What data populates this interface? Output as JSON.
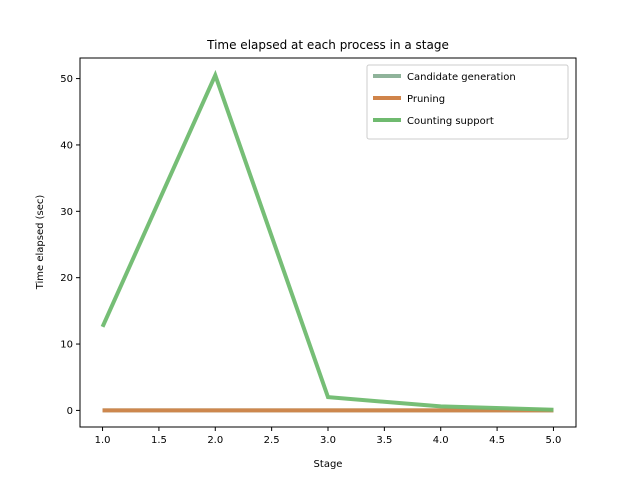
{
  "chart_data": {
    "type": "line",
    "title": "Time elapsed at each process in a stage",
    "xlabel": "Stage",
    "ylabel": "Time elapsed (sec)",
    "xlim": [
      0.8,
      5.2
    ],
    "ylim": [
      -2.5,
      53.1
    ],
    "xticks": [
      1.0,
      1.5,
      2.0,
      2.5,
      3.0,
      3.5,
      4.0,
      4.5,
      5.0
    ],
    "xtick_labels": [
      "1.0",
      "1.5",
      "2.0",
      "2.5",
      "3.0",
      "3.5",
      "4.0",
      "4.5",
      "5.0"
    ],
    "yticks": [
      0,
      10,
      20,
      30,
      40,
      50
    ],
    "ytick_labels": [
      "0",
      "10",
      "20",
      "30",
      "40",
      "50"
    ],
    "grid": false,
    "legend_position": "top-right",
    "x": [
      1,
      2,
      3,
      4,
      5
    ],
    "series": [
      {
        "name": "Candidate generation",
        "values": [
          0.0,
          0.0,
          0.0,
          0.0,
          0.0
        ],
        "color": "#8fb39a"
      },
      {
        "name": "Pruning",
        "values": [
          0.0,
          0.0,
          0.0,
          0.0,
          0.0
        ],
        "color": "#d0844a"
      },
      {
        "name": "Counting support",
        "values": [
          12.6,
          50.5,
          2.0,
          0.6,
          0.1
        ],
        "color": "#6fba6f"
      }
    ]
  }
}
